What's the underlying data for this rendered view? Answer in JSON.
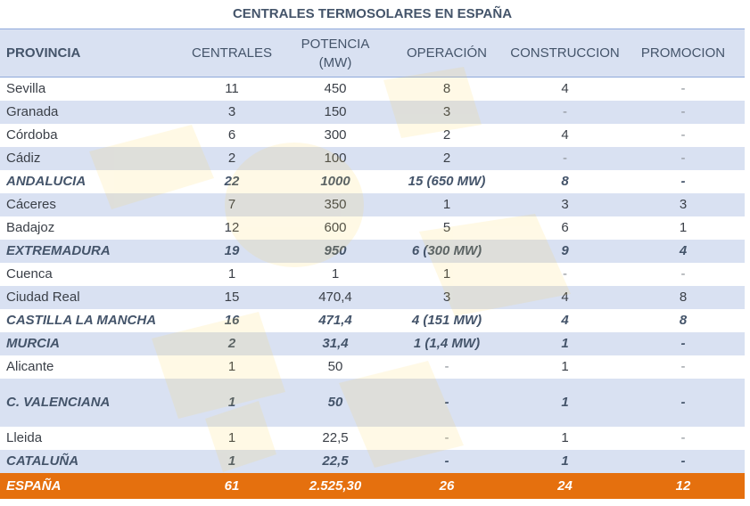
{
  "title": "CENTRALES TERMOSOLARES EN ESPAÑA",
  "columns": [
    "PROVINCIA",
    "CENTRALES",
    "POTENCIA (MW)",
    "OPERACIÓN",
    "CONSTRUCCION",
    "PROMOCION"
  ],
  "colors": {
    "header_bg": "#d9e1f2",
    "alt_row_bg": "#d9e1f2",
    "total_bg": "#e5700e",
    "title_text": "#44546a"
  },
  "rows": [
    {
      "type": "row",
      "cells": [
        "Sevilla",
        "11",
        "450",
        "8",
        "4",
        "-"
      ]
    },
    {
      "type": "row",
      "cells": [
        "Granada",
        "3",
        "150",
        "3",
        "-",
        "-"
      ]
    },
    {
      "type": "row",
      "cells": [
        "Córdoba",
        "6",
        "300",
        "2",
        "4",
        "-"
      ]
    },
    {
      "type": "row",
      "cells": [
        "Cádiz",
        "2",
        "100",
        "2",
        "-",
        "-"
      ]
    },
    {
      "type": "subtotal",
      "cells": [
        "ANDALUCIA",
        "22",
        "1000",
        "15 (650 MW)",
        "8",
        "-"
      ]
    },
    {
      "type": "row",
      "cells": [
        "Cáceres",
        "7",
        "350",
        "1",
        "3",
        "3"
      ]
    },
    {
      "type": "row",
      "cells": [
        "Badajoz",
        "12",
        "600",
        "5",
        "6",
        "1"
      ]
    },
    {
      "type": "subtotal",
      "cells": [
        "EXTREMADURA",
        "19",
        "950",
        "6 (300 MW)",
        "9",
        "4"
      ]
    },
    {
      "type": "row",
      "cells": [
        "Cuenca",
        "1",
        "1",
        "1",
        "-",
        "-"
      ]
    },
    {
      "type": "row",
      "cells": [
        "Ciudad Real",
        "15",
        "470,4",
        "3",
        "4",
        "8"
      ]
    },
    {
      "type": "subtotal",
      "cells": [
        "CASTILLA LA MANCHA",
        "16",
        "471,4",
        "4 (151 MW)",
        "4",
        "8"
      ]
    },
    {
      "type": "subtotal",
      "cells": [
        "MURCIA",
        "2",
        "31,4",
        "1 (1,4 MW)",
        "1",
        "-"
      ]
    },
    {
      "type": "row",
      "cells": [
        "Alicante",
        "1",
        "50",
        "-",
        "1",
        "-"
      ]
    },
    {
      "type": "subtotal",
      "tall": true,
      "cells": [
        "C. VALENCIANA",
        "1",
        "50",
        "-",
        "1",
        "-"
      ]
    },
    {
      "type": "row",
      "cells": [
        "Lleida",
        "1",
        "22,5",
        "-",
        "1",
        "-"
      ]
    },
    {
      "type": "subtotal",
      "cells": [
        "CATALUÑA",
        "1",
        "22,5",
        "-",
        "1",
        "-"
      ]
    },
    {
      "type": "total",
      "cells": [
        "ESPAÑA",
        "61",
        "2.525,30",
        "26",
        "24",
        "12"
      ]
    }
  ]
}
